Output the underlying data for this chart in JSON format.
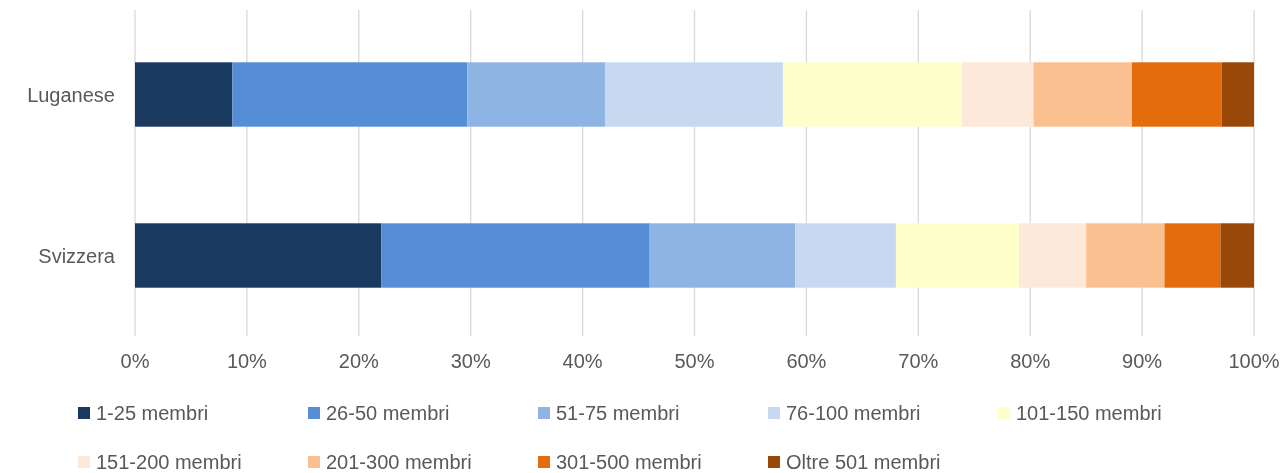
{
  "chart_data": {
    "type": "bar",
    "orientation": "horizontal",
    "stacked": true,
    "categories": [
      "Luganese",
      "Svizzera"
    ],
    "series": [
      {
        "name": "1-25 membri",
        "color": "#1a3a5f",
        "values": [
          8.7,
          22
        ]
      },
      {
        "name": "26-50 membri",
        "color": "#558ed5",
        "values": [
          21,
          24
        ]
      },
      {
        "name": "51-75 membri",
        "color": "#8eb4e3",
        "values": [
          12.3,
          13
        ]
      },
      {
        "name": "76-100 membri",
        "color": "#c6d9f1",
        "values": [
          15.9,
          9
        ]
      },
      {
        "name": "101-150 membri",
        "color": "#ffffcc",
        "values": [
          16,
          11
        ]
      },
      {
        "name": "151-200 membri",
        "color": "#fde9d9",
        "values": [
          6.4,
          6
        ]
      },
      {
        "name": "201-300 membri",
        "color": "#fac090",
        "values": [
          8.8,
          7
        ]
      },
      {
        "name": "301-500 membri",
        "color": "#e46c0a",
        "values": [
          8,
          5
        ]
      },
      {
        "name": "Oltre 501 membri",
        "color": "#984807",
        "values": [
          2.9,
          3
        ]
      }
    ],
    "xlim": [
      0,
      100
    ],
    "xticks": [
      {
        "value": 0,
        "label": "0%"
      },
      {
        "value": 10,
        "label": "10%"
      },
      {
        "value": 20,
        "label": "20%"
      },
      {
        "value": 30,
        "label": "30%"
      },
      {
        "value": 40,
        "label": "40%"
      },
      {
        "value": 50,
        "label": "50%"
      },
      {
        "value": 60,
        "label": "60%"
      },
      {
        "value": 70,
        "label": "70%"
      },
      {
        "value": 80,
        "label": "80%"
      },
      {
        "value": 90,
        "label": "90%"
      },
      {
        "value": 100,
        "label": "100%"
      }
    ],
    "grid": "x",
    "legend": "bottom"
  }
}
